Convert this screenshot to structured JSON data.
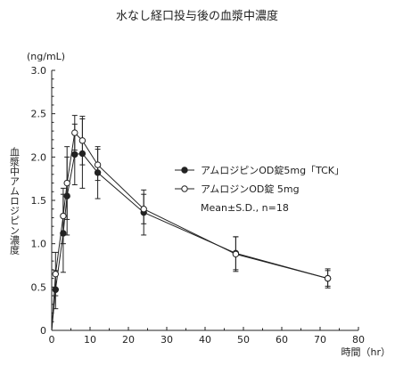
{
  "chart_data": {
    "type": "line",
    "title": "水なし経口投与後の血漿中濃度",
    "xlabel": "時間（hr）",
    "ylabel": "血漿中アムロジピン濃度",
    "yunit": "(ng/mL)",
    "xlim": [
      0,
      80
    ],
    "ylim": [
      0,
      3.0
    ],
    "xticks": [
      "0",
      "10",
      "20",
      "30",
      "40",
      "50",
      "60",
      "70",
      "80"
    ],
    "yticks": [
      "0",
      "0.5",
      "1.0",
      "1.5",
      "2.0",
      "2.5",
      "3.0"
    ],
    "grid": false,
    "legend_position": "right",
    "note": "Mean±S.D.,  n=18",
    "series": [
      {
        "name": "アムロジピンOD錠5mg「TCK」",
        "marker": "filled-circle",
        "color": "#222222",
        "x": [
          0,
          1,
          3,
          4,
          6,
          8,
          12,
          24,
          48,
          72
        ],
        "y": [
          0,
          0.47,
          1.12,
          1.55,
          2.03,
          2.04,
          1.82,
          1.36,
          0.89,
          0.6
        ],
        "sd": [
          0,
          0.22,
          0.45,
          0.45,
          0.35,
          0.4,
          0.3,
          0.26,
          0.19,
          0.11
        ]
      },
      {
        "name": "アムロジンOD錠 5mg",
        "marker": "open-circle",
        "color": "#222222",
        "x": [
          0,
          1,
          3,
          4,
          6,
          8,
          12,
          24,
          48,
          72
        ],
        "y": [
          0,
          0.65,
          1.32,
          1.7,
          2.28,
          2.19,
          1.91,
          1.4,
          0.88,
          0.6
        ],
        "sd": [
          0,
          0.25,
          0.32,
          0.42,
          0.2,
          0.28,
          0.18,
          0.17,
          0.2,
          0.09
        ]
      }
    ]
  }
}
